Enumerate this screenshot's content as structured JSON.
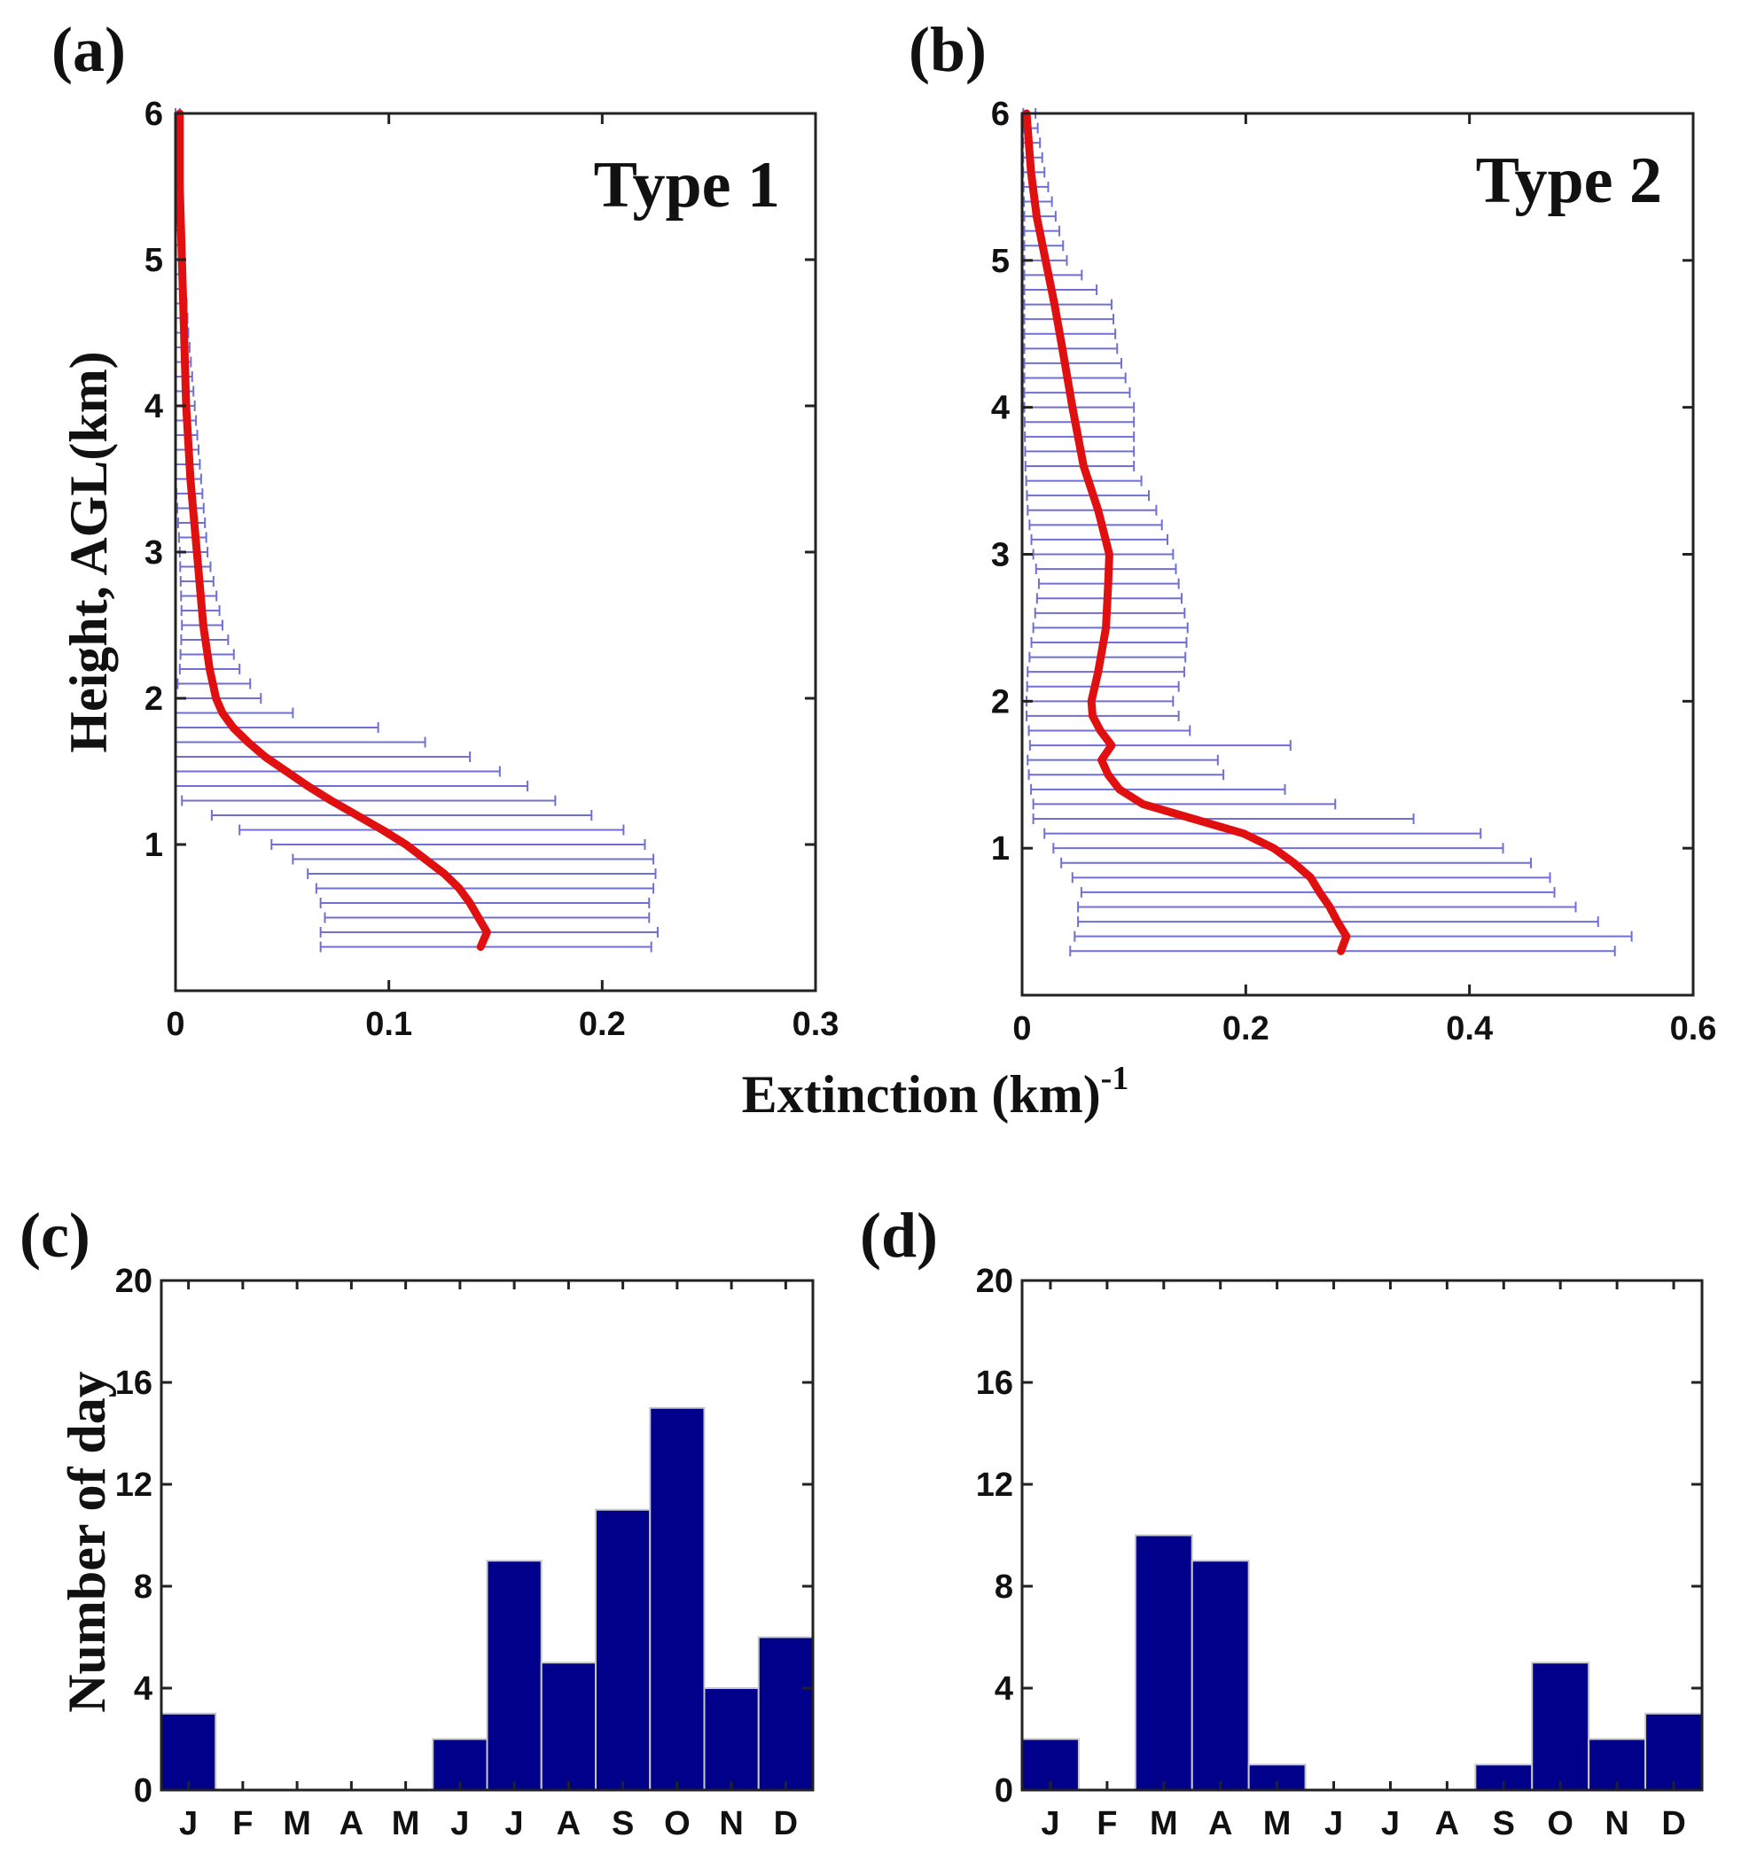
{
  "figure": {
    "extinction_xlabel": "Extinction (km)",
    "extinction_xlabel_sup": "-1"
  },
  "chart_data": [
    {
      "panel": "(a)",
      "type": "line",
      "annotation": "Type 1",
      "xlabel": "",
      "ylabel": "Height, AGL(km)",
      "xlim": [
        0,
        0.3
      ],
      "ylim": [
        0,
        6
      ],
      "xticks": [
        "0",
        "0.1",
        "0.2",
        "0.3"
      ],
      "yticks": [
        "1",
        "2",
        "3",
        "4",
        "5",
        "6"
      ],
      "line_color": "#e01010",
      "error_bar_color": "#6f6fd6",
      "series": [
        {
          "height": [
            0.3,
            0.4,
            0.5,
            0.6,
            0.7,
            0.8,
            0.9,
            1.0,
            1.1,
            1.2,
            1.3,
            1.4,
            1.5,
            1.6,
            1.7,
            1.8,
            1.9,
            2.0,
            2.2,
            2.5,
            3.0,
            3.5,
            4.0,
            4.5,
            5.0,
            5.5,
            6.0
          ],
          "mean": [
            0.143,
            0.146,
            0.142,
            0.138,
            0.133,
            0.126,
            0.117,
            0.108,
            0.097,
            0.085,
            0.073,
            0.062,
            0.052,
            0.042,
            0.034,
            0.027,
            0.022,
            0.019,
            0.016,
            0.013,
            0.01,
            0.007,
            0.005,
            0.004,
            0.003,
            0.002,
            0.002
          ],
          "lower": [
            0.068,
            0.068,
            0.07,
            0.068,
            0.066,
            0.062,
            0.055,
            0.045,
            0.03,
            0.017,
            0.003,
            0.0,
            0.0,
            0.0,
            0.0,
            0.0,
            0.0,
            0.0,
            0.002,
            0.003,
            0.002,
            0.0,
            0.0,
            0.0,
            0.0,
            0.0,
            0.0
          ],
          "upper": [
            0.223,
            0.226,
            0.222,
            0.222,
            0.224,
            0.225,
            0.224,
            0.22,
            0.21,
            0.195,
            0.178,
            0.165,
            0.152,
            0.138,
            0.117,
            0.095,
            0.055,
            0.04,
            0.03,
            0.022,
            0.015,
            0.012,
            0.009,
            0.006,
            0.004,
            0.003,
            0.002
          ]
        }
      ]
    },
    {
      "panel": "(b)",
      "type": "line",
      "annotation": "Type 2",
      "xlabel": "",
      "ylabel": "",
      "xlim": [
        0,
        0.6
      ],
      "ylim": [
        0,
        6
      ],
      "xticks": [
        "0",
        "0.2",
        "0.4",
        "0.6"
      ],
      "yticks": [
        "1",
        "2",
        "3",
        "4",
        "5",
        "6"
      ],
      "line_color": "#e01010",
      "error_bar_color": "#6f6fd6",
      "series": [
        {
          "height": [
            0.3,
            0.4,
            0.5,
            0.6,
            0.7,
            0.8,
            0.9,
            1.0,
            1.1,
            1.2,
            1.3,
            1.4,
            1.5,
            1.6,
            1.7,
            1.8,
            1.9,
            2.0,
            2.2,
            2.5,
            2.8,
            3.0,
            3.3,
            3.6,
            4.0,
            4.4,
            4.7,
            5.0,
            5.3,
            5.6,
            6.0
          ],
          "mean": [
            0.285,
            0.29,
            0.282,
            0.275,
            0.266,
            0.258,
            0.243,
            0.225,
            0.198,
            0.153,
            0.108,
            0.087,
            0.077,
            0.071,
            0.08,
            0.07,
            0.063,
            0.062,
            0.068,
            0.075,
            0.077,
            0.078,
            0.068,
            0.055,
            0.045,
            0.036,
            0.029,
            0.021,
            0.013,
            0.008,
            0.004
          ],
          "lower": [
            0.043,
            0.047,
            0.05,
            0.05,
            0.053,
            0.045,
            0.035,
            0.028,
            0.02,
            0.01,
            0.01,
            0.008,
            0.006,
            0.005,
            0.007,
            0.006,
            0.004,
            0.004,
            0.005,
            0.01,
            0.015,
            0.01,
            0.005,
            0.003,
            0.002,
            0.002,
            0.002,
            0.002,
            0.002,
            0.001,
            0.001
          ],
          "upper": [
            0.53,
            0.545,
            0.515,
            0.495,
            0.476,
            0.472,
            0.455,
            0.43,
            0.41,
            0.35,
            0.28,
            0.235,
            0.18,
            0.175,
            0.24,
            0.15,
            0.14,
            0.135,
            0.145,
            0.148,
            0.14,
            0.135,
            0.12,
            0.1,
            0.1,
            0.085,
            0.08,
            0.04,
            0.03,
            0.02,
            0.012
          ]
        }
      ]
    },
    {
      "panel": "(c)",
      "type": "bar",
      "ylabel": "Number of day",
      "xlabel": "",
      "ylim": [
        0,
        20
      ],
      "yticks": [
        "0",
        "4",
        "8",
        "12",
        "16",
        "20"
      ],
      "categories": [
        "J",
        "F",
        "M",
        "A",
        "M",
        "J",
        "J",
        "A",
        "S",
        "O",
        "N",
        "D"
      ],
      "values": [
        3,
        0,
        0,
        0,
        0,
        2,
        9,
        5,
        11,
        15,
        4,
        6
      ],
      "bar_color": "#00008b"
    },
    {
      "panel": "(d)",
      "type": "bar",
      "ylabel": "",
      "xlabel": "",
      "ylim": [
        0,
        20
      ],
      "yticks": [
        "0",
        "4",
        "8",
        "12",
        "16",
        "20"
      ],
      "categories": [
        "J",
        "F",
        "M",
        "A",
        "M",
        "J",
        "J",
        "A",
        "S",
        "O",
        "N",
        "D"
      ],
      "values": [
        2,
        0,
        10,
        9,
        1,
        0,
        0,
        0,
        1,
        5,
        2,
        3
      ],
      "bar_color": "#00008b"
    }
  ]
}
